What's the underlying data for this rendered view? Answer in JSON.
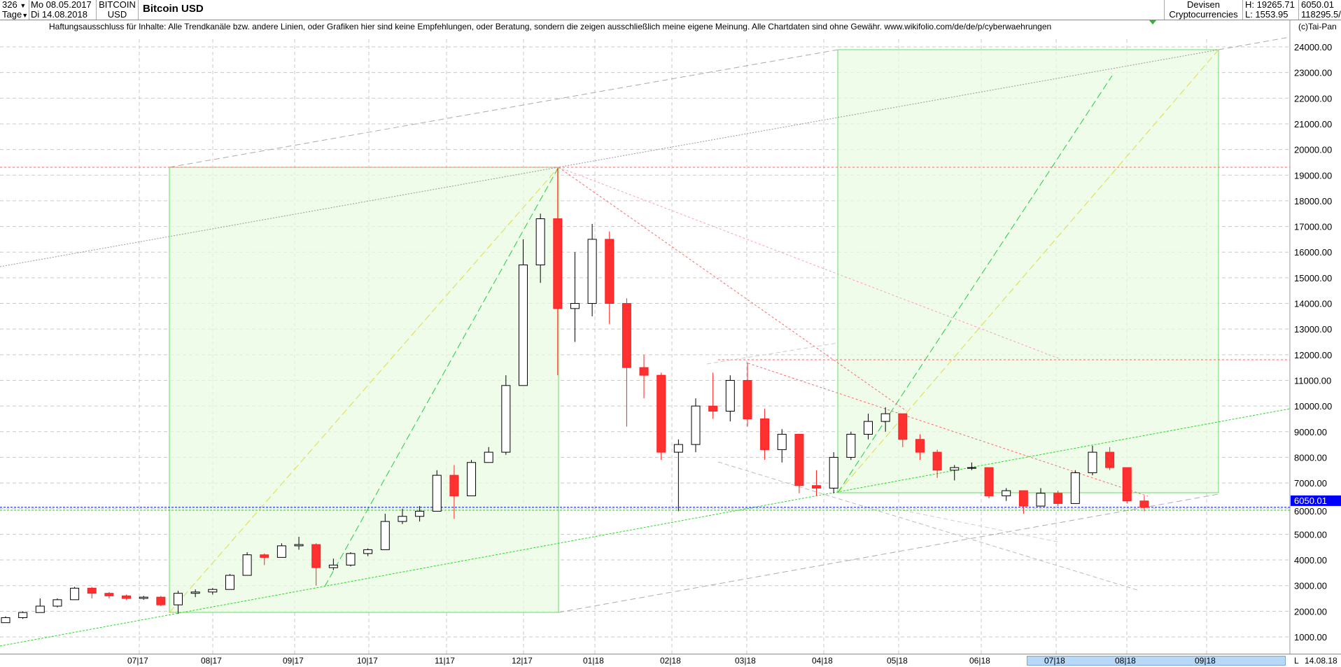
{
  "header": {
    "period_count": "326",
    "period_unit": "Tage",
    "date_from": "Mo 08.05.2017",
    "date_to": "Di 14.08.2018",
    "symbol_line1": "BITCOIN",
    "symbol_line2": "USD",
    "title": "Bitcoin USD",
    "category_line1": "Devisen",
    "category_line2": "Cryptocurrencies",
    "high": "H: 19265.71",
    "low": "L: 1553.95",
    "last": "6050.01",
    "volume": "118295.5/"
  },
  "disclaimer": "Haftungsausschluss für Inhalte: Alle Trendkanäle bzw. andere Linien, oder Grafiken hier sind keine Empfehlungen, oder Beratung, sondern die zeigen ausschließlich meine eigene Meinung. Alle Chartdaten sind ohne Gewähr.  www.wikifolio.com/de/de/p/cyberwaehrungen",
  "copyright": "(c)Tai-Pan",
  "footer": {
    "mode": "L",
    "date": "14.08.18"
  },
  "colors": {
    "up": "#ffffff",
    "down": "#ff3030",
    "last_price": "#0000ff",
    "zone_fill": "#e8fbe0",
    "zone_border": "#66dd66"
  },
  "chart_data": {
    "type": "candlestick",
    "title": "Bitcoin USD",
    "interval": "approx. weekly (read from daily chart)",
    "x_tick_labels": [
      "07|17",
      "08|17",
      "09|17",
      "10|17",
      "11|17",
      "12|17",
      "01|18",
      "02|18",
      "03|18",
      "04|18",
      "05|18",
      "06|18",
      "07|18",
      "08|18",
      "09|18"
    ],
    "y_tick_labels": [
      "1000.00",
      "2000.00",
      "3000.00",
      "4000.00",
      "5000.00",
      "6000.00",
      "7000.00",
      "8000.00",
      "9000.00",
      "10000.00",
      "11000.00",
      "12000.00",
      "13000.00",
      "14000.00",
      "15000.00",
      "16000.00",
      "17000.00",
      "18000.00",
      "19000.00",
      "20000.00",
      "21000.00",
      "22000.00",
      "23000.00",
      "24000.00"
    ],
    "ylim": [
      1000,
      24000
    ],
    "grid": true,
    "last_price_label": "6050.01",
    "candles": [
      [
        "2017-05-08",
        1554,
        1800,
        1554,
        1750
      ],
      [
        "2017-05-15",
        1750,
        2000,
        1700,
        1950
      ],
      [
        "2017-05-22",
        1950,
        2500,
        1950,
        2200
      ],
      [
        "2017-05-29",
        2200,
        2500,
        2150,
        2450
      ],
      [
        "2017-06-05",
        2450,
        2950,
        2450,
        2900
      ],
      [
        "2017-06-12",
        2900,
        2950,
        2500,
        2700
      ],
      [
        "2017-06-19",
        2700,
        2750,
        2500,
        2600
      ],
      [
        "2017-06-26",
        2600,
        2650,
        2450,
        2500
      ],
      [
        "2017-07-03",
        2500,
        2600,
        2450,
        2550
      ],
      [
        "2017-07-10",
        2550,
        2600,
        2200,
        2250
      ],
      [
        "2017-07-17",
        2250,
        2800,
        1900,
        2700
      ],
      [
        "2017-07-24",
        2700,
        2850,
        2550,
        2750
      ],
      [
        "2017-07-31",
        2750,
        2900,
        2650,
        2850
      ],
      [
        "2017-08-07",
        2850,
        3450,
        2850,
        3400
      ],
      [
        "2017-08-14",
        3400,
        4300,
        3400,
        4200
      ],
      [
        "2017-08-21",
        4200,
        4250,
        3800,
        4100
      ],
      [
        "2017-08-28",
        4100,
        4650,
        4100,
        4550
      ],
      [
        "2017-09-04",
        4550,
        4900,
        4400,
        4600
      ],
      [
        "2017-09-11",
        4600,
        4650,
        3000,
        3700
      ],
      [
        "2017-09-18",
        3700,
        4050,
        3600,
        3800
      ],
      [
        "2017-09-25",
        3800,
        4300,
        3750,
        4250
      ],
      [
        "2017-10-02",
        4250,
        4450,
        4150,
        4400
      ],
      [
        "2017-10-09",
        4400,
        5800,
        4400,
        5500
      ],
      [
        "2017-10-16",
        5500,
        6000,
        5400,
        5700
      ],
      [
        "2017-10-23",
        5700,
        6100,
        5500,
        5900
      ],
      [
        "2017-10-30",
        5900,
        7500,
        5900,
        7300
      ],
      [
        "2017-11-06",
        7300,
        7700,
        5600,
        6500
      ],
      [
        "2017-11-13",
        6500,
        7900,
        6500,
        7800
      ],
      [
        "2017-11-20",
        7800,
        8400,
        7800,
        8200
      ],
      [
        "2017-11-27",
        8200,
        11200,
        8100,
        10800
      ],
      [
        "2017-12-04",
        10800,
        16500,
        10800,
        15500
      ],
      [
        "2017-12-11",
        15500,
        17500,
        14800,
        17300
      ],
      [
        "2017-12-18",
        17300,
        19266,
        11200,
        13800
      ],
      [
        "2017-12-25",
        13800,
        16000,
        12500,
        14000
      ],
      [
        "2018-01-01",
        14000,
        17100,
        13500,
        16500
      ],
      [
        "2018-01-08",
        16500,
        16800,
        13200,
        14000
      ],
      [
        "2018-01-15",
        14000,
        14200,
        9200,
        11500
      ],
      [
        "2018-01-22",
        11500,
        12000,
        10300,
        11200
      ],
      [
        "2018-01-29",
        11200,
        11300,
        7900,
        8200
      ],
      [
        "2018-02-05",
        8200,
        8700,
        5900,
        8500
      ],
      [
        "2018-02-12",
        8500,
        10300,
        8200,
        10000
      ],
      [
        "2018-02-19",
        10000,
        11300,
        9500,
        9800
      ],
      [
        "2018-02-26",
        9800,
        11200,
        9400,
        11000
      ],
      [
        "2018-03-05",
        11000,
        11700,
        9200,
        9500
      ],
      [
        "2018-03-12",
        9500,
        9900,
        7900,
        8300
      ],
      [
        "2018-03-19",
        8300,
        9100,
        7800,
        8900
      ],
      [
        "2018-03-26",
        8900,
        8900,
        6600,
        6900
      ],
      [
        "2018-04-02",
        6900,
        7500,
        6500,
        6800
      ],
      [
        "2018-04-09",
        6800,
        8200,
        6600,
        8000
      ],
      [
        "2018-04-16",
        8000,
        9000,
        7900,
        8900
      ],
      [
        "2018-04-23",
        8900,
        9700,
        8700,
        9400
      ],
      [
        "2018-04-30",
        9400,
        9950,
        9000,
        9700
      ],
      [
        "2018-05-07",
        9700,
        9700,
        8400,
        8700
      ],
      [
        "2018-05-14",
        8700,
        8900,
        7900,
        8200
      ],
      [
        "2018-05-21",
        8200,
        8300,
        7200,
        7500
      ],
      [
        "2018-05-28",
        7500,
        7700,
        7100,
        7600
      ],
      [
        "2018-06-04",
        7600,
        7800,
        7500,
        7600
      ],
      [
        "2018-06-11",
        7600,
        7600,
        6400,
        6500
      ],
      [
        "2018-06-18",
        6500,
        6800,
        6300,
        6700
      ],
      [
        "2018-06-25",
        6700,
        6700,
        5800,
        6100
      ],
      [
        "2018-07-02",
        6100,
        6800,
        6100,
        6600
      ],
      [
        "2018-07-09",
        6600,
        6700,
        6100,
        6200
      ],
      [
        "2018-07-16",
        6200,
        7500,
        6200,
        7400
      ],
      [
        "2018-07-23",
        7400,
        8450,
        7300,
        8200
      ],
      [
        "2018-07-30",
        8200,
        8400,
        7500,
        7600
      ],
      [
        "2018-08-06",
        7600,
        7600,
        6200,
        6300
      ],
      [
        "2018-08-13",
        6300,
        6500,
        5900,
        6050
      ]
    ]
  }
}
